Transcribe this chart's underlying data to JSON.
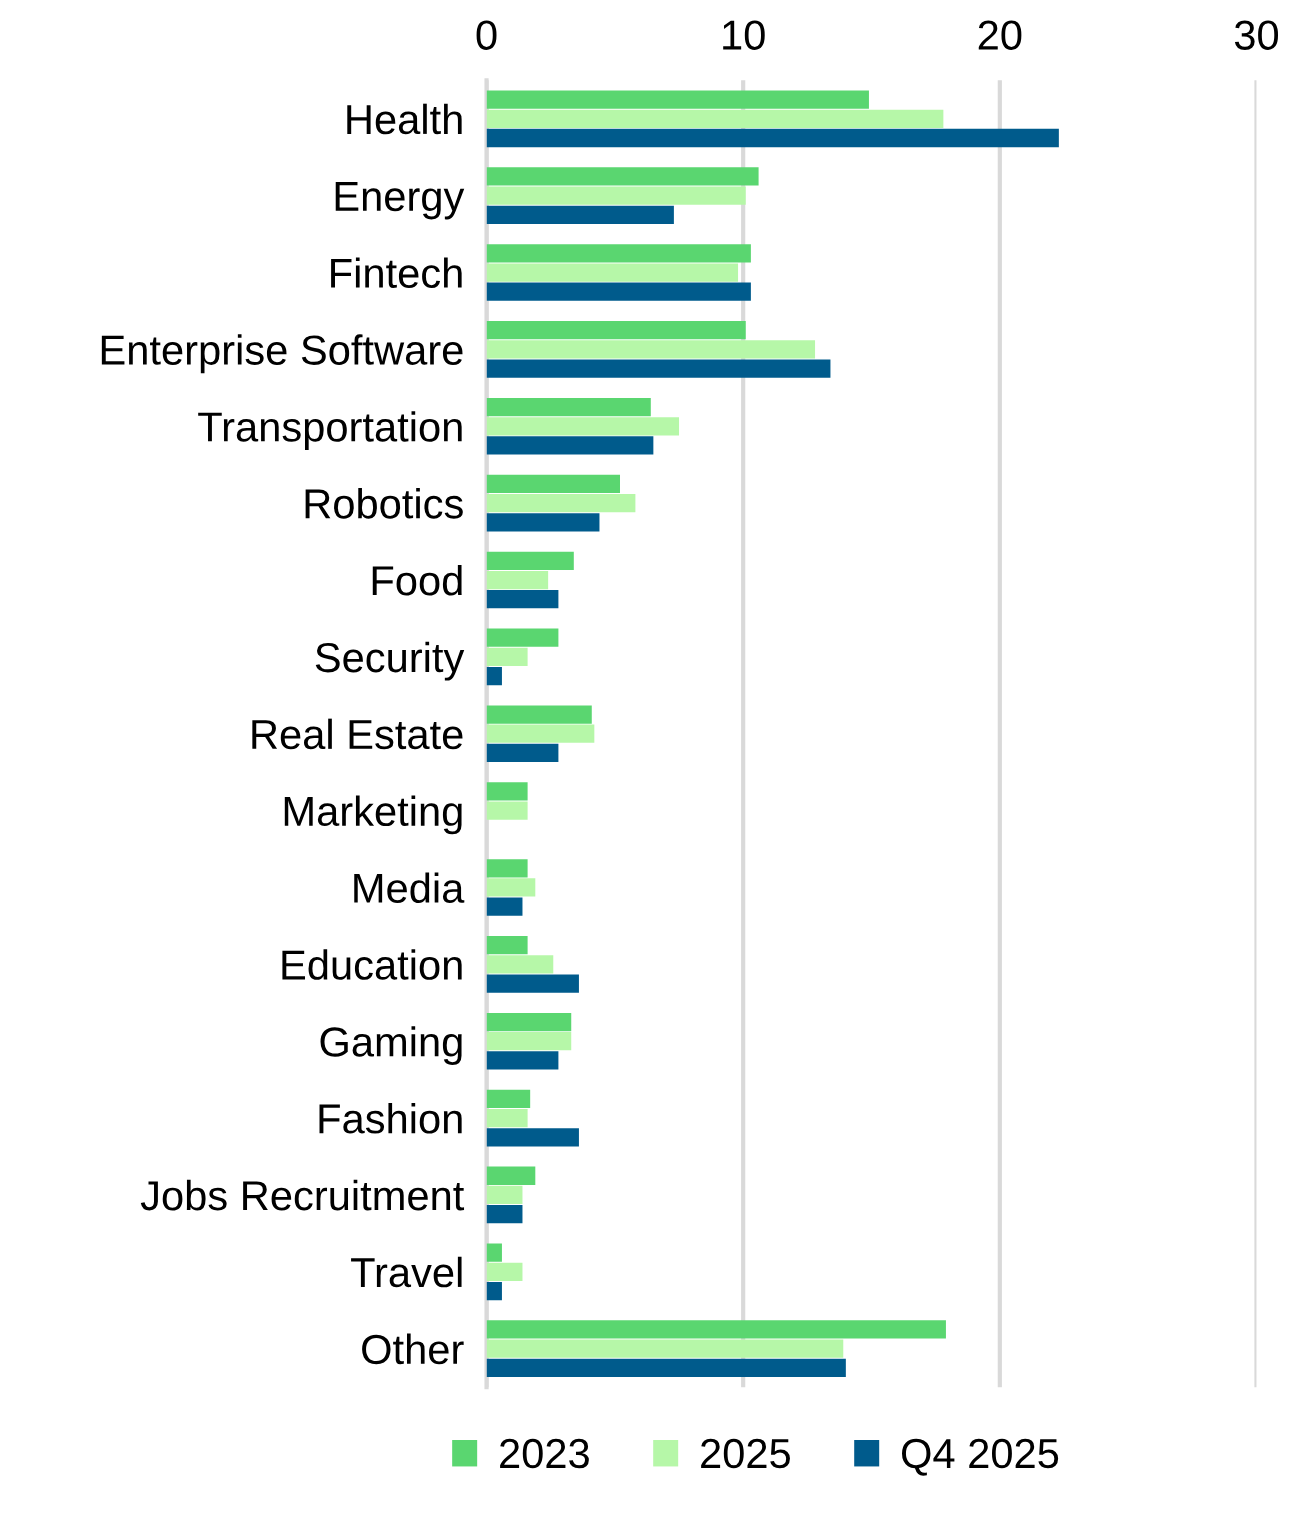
{
  "chart_data": {
    "type": "bar",
    "orientation": "horizontal",
    "categories": [
      "Health",
      "Energy",
      "Fintech",
      "Enterprise Software",
      "Transportation",
      "Robotics",
      "Food",
      "Security",
      "Real Estate",
      "Marketing",
      "Media",
      "Education",
      "Gaming",
      "Fashion",
      "Jobs Recruitment",
      "Travel",
      "Other"
    ],
    "series": [
      {
        "name": "2023",
        "color": "#5ad670",
        "values": [
          14.9,
          10.6,
          10.3,
          10.1,
          6.4,
          5.2,
          3.4,
          2.8,
          4.1,
          1.6,
          1.6,
          1.6,
          3.3,
          1.7,
          1.9,
          0.6,
          17.9
        ]
      },
      {
        "name": "2025",
        "color": "#b6f7a8",
        "values": [
          17.8,
          10.1,
          9.8,
          12.8,
          7.5,
          5.8,
          2.4,
          1.6,
          4.2,
          1.6,
          1.9,
          2.6,
          3.3,
          1.6,
          1.4,
          1.4,
          13.9
        ]
      },
      {
        "name": "Q4 2025",
        "color": "#005b8c",
        "values": [
          22.3,
          7.3,
          10.3,
          13.4,
          6.5,
          4.4,
          2.8,
          0.6,
          2.8,
          0,
          1.4,
          3.6,
          2.8,
          3.6,
          1.4,
          0.6,
          14.0
        ]
      }
    ],
    "xlim": [
      0,
      30
    ],
    "xticks": [
      0,
      10,
      20,
      30
    ],
    "grid": "x",
    "legend": "bottom"
  }
}
